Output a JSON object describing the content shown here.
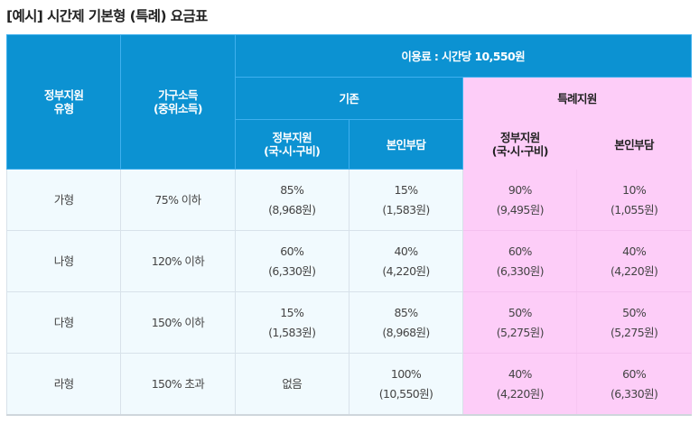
{
  "title": "[예시] 시간제 기본형 (특례) 요금표",
  "header": {
    "type_col": [
      "정부지원",
      "유형"
    ],
    "income_col": [
      "가구소득",
      "(중위소득)"
    ],
    "fee": "이용료 : 시간당 10,550원",
    "existing": "기존",
    "special": "특례지원",
    "gov_support": [
      "정부지원",
      "(국·시·구비)"
    ],
    "self_pay": "본인부담"
  },
  "colors": {
    "header_blue": "#0c92d2",
    "special_pink": "#fdcdf8",
    "body_bg": "#f1fafe"
  },
  "rows": [
    {
      "type": "가형",
      "income": "75% 이하",
      "existing_gov": {
        "pct": "85%",
        "amt": "(8,968원)"
      },
      "existing_self": {
        "pct": "15%",
        "amt": "(1,583원)"
      },
      "special_gov": {
        "pct": "90%",
        "amt": "(9,495원)"
      },
      "special_self": {
        "pct": "10%",
        "amt": "(1,055원)"
      }
    },
    {
      "type": "나형",
      "income": "120% 이하",
      "existing_gov": {
        "pct": "60%",
        "amt": "(6,330원)"
      },
      "existing_self": {
        "pct": "40%",
        "amt": "(4,220원)"
      },
      "special_gov": {
        "pct": "60%",
        "amt": "(6,330원)"
      },
      "special_self": {
        "pct": "40%",
        "amt": "(4,220원)"
      }
    },
    {
      "type": "다형",
      "income": "150% 이하",
      "existing_gov": {
        "pct": "15%",
        "amt": "(1,583원)"
      },
      "existing_self": {
        "pct": "85%",
        "amt": "(8,968원)"
      },
      "special_gov": {
        "pct": "50%",
        "amt": "(5,275원)"
      },
      "special_self": {
        "pct": "50%",
        "amt": "(5,275원)"
      }
    },
    {
      "type": "라형",
      "income": "150% 초과",
      "existing_gov": {
        "pct": "없음",
        "amt": null
      },
      "existing_self": {
        "pct": "100%",
        "amt": "(10,550원)"
      },
      "special_gov": {
        "pct": "40%",
        "amt": "(4,220원)"
      },
      "special_self": {
        "pct": "60%",
        "amt": "(6,330원)"
      }
    }
  ]
}
